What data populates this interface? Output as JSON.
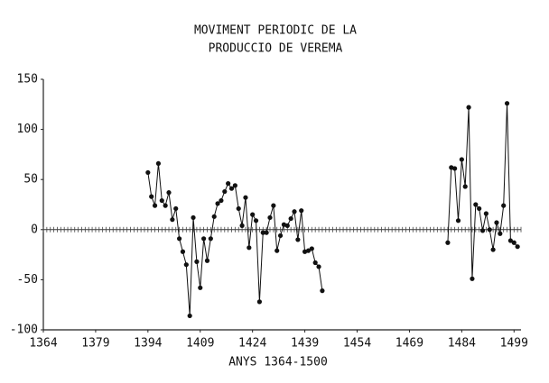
{
  "chart_data": {
    "type": "line",
    "title": [
      "MOVIMENT PERIODIC DE LA",
      "PRODUCCIO DE VEREMA"
    ],
    "x_label": "ANYS 1364-1500",
    "x": [
      1394,
      1395,
      1396,
      1397,
      1398,
      1399,
      1400,
      1401,
      1402,
      1403,
      1404,
      1405,
      1406,
      1407,
      1408,
      1409,
      1410,
      1411,
      1412,
      1413,
      1414,
      1415,
      1416,
      1417,
      1418,
      1419,
      1420,
      1421,
      1422,
      1423,
      1424,
      1425,
      1426,
      1427,
      1428,
      1429,
      1430,
      1431,
      1432,
      1433,
      1434,
      1435,
      1436,
      1437,
      1438,
      1439,
      1440,
      1441,
      1442,
      1443,
      1444,
      1445,
      1446,
      1447,
      1448,
      1449,
      1450,
      1451,
      1452,
      1453,
      1454,
      1455,
      1456,
      1457,
      1458,
      1459,
      1460,
      1461,
      1462,
      1463,
      1464,
      1465,
      1466,
      1467,
      1468,
      1469,
      1470,
      1471,
      1472,
      1473,
      1474,
      1475,
      1476,
      1477,
      1478,
      1479,
      1480,
      1481,
      1482,
      1483,
      1484,
      1485,
      1486,
      1487,
      1488,
      1489,
      1490,
      1491,
      1492,
      1493,
      1494,
      1495,
      1496,
      1497,
      1498,
      1499,
      1500
    ],
    "values": [
      57,
      33,
      24,
      66,
      29,
      24,
      37,
      10,
      21,
      -9,
      -22,
      -35,
      -86,
      12,
      -32,
      -58,
      -9,
      -31,
      -9,
      13,
      26,
      29,
      38,
      46,
      41,
      44,
      21,
      4,
      32,
      -18,
      15,
      9,
      -72,
      -3,
      -3,
      12,
      24,
      -21,
      -6,
      5,
      4,
      11,
      18,
      -10,
      19,
      -22,
      -21,
      -19,
      -33,
      -37,
      -61,
      null,
      null,
      null,
      null,
      null,
      null,
      null,
      null,
      null,
      null,
      null,
      null,
      null,
      null,
      null,
      null,
      null,
      null,
      null,
      null,
      null,
      null,
      null,
      null,
      null,
      null,
      null,
      null,
      null,
      null,
      null,
      null,
      null,
      null,
      null,
      -13,
      62,
      61,
      9,
      70,
      43,
      122,
      -49,
      25,
      21,
      -1,
      16,
      0,
      -20,
      7,
      -4,
      24,
      126,
      -11,
      -13,
      -17
    ],
    "color": "#111111",
    "xlim": [
      1364,
      1501
    ],
    "xticks": [
      1364,
      1379,
      1394,
      1409,
      1424,
      1439,
      1454,
      1469,
      1484,
      1499
    ],
    "ylim": [
      -100,
      150
    ],
    "yticks": [
      -100,
      -50,
      0,
      50,
      100,
      150
    ]
  }
}
